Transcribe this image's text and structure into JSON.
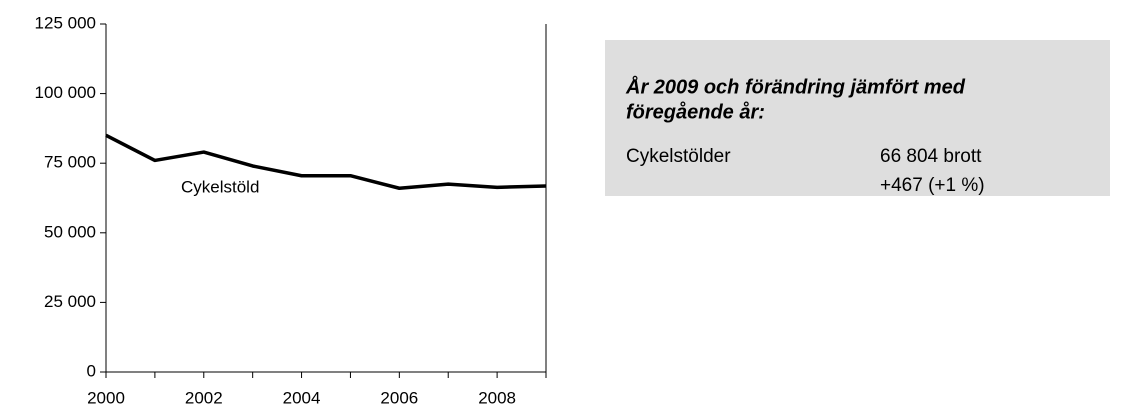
{
  "chart_data": {
    "type": "line",
    "x": [
      2000,
      2001,
      2002,
      2003,
      2004,
      2005,
      2006,
      2007,
      2008,
      2009
    ],
    "series": [
      {
        "name": "Cykelstöld",
        "color": "#000000",
        "values": [
          85000,
          76000,
          79000,
          74000,
          70500,
          70500,
          66000,
          67500,
          66337,
          66804
        ]
      }
    ],
    "xlim": [
      2000,
      2009
    ],
    "xticks": [
      2000,
      2002,
      2004,
      2006,
      2008
    ],
    "ylim": [
      0,
      125000
    ],
    "yticks": [
      {
        "value": 0,
        "label": "0"
      },
      {
        "value": 25000,
        "label": "25 000"
      },
      {
        "value": 50000,
        "label": "50 000"
      },
      {
        "value": 75000,
        "label": "75 000"
      },
      {
        "value": 100000,
        "label": "100 000"
      },
      {
        "value": 125000,
        "label": "125 000"
      }
    ],
    "grid": false
  },
  "info_box": {
    "title_lines": [
      "År 2009 och förändring jämfört med",
      "föregående år:"
    ],
    "label": "Cykelstölder",
    "value_lines": [
      "66 804 brott",
      "+467 (+1 %)"
    ]
  }
}
